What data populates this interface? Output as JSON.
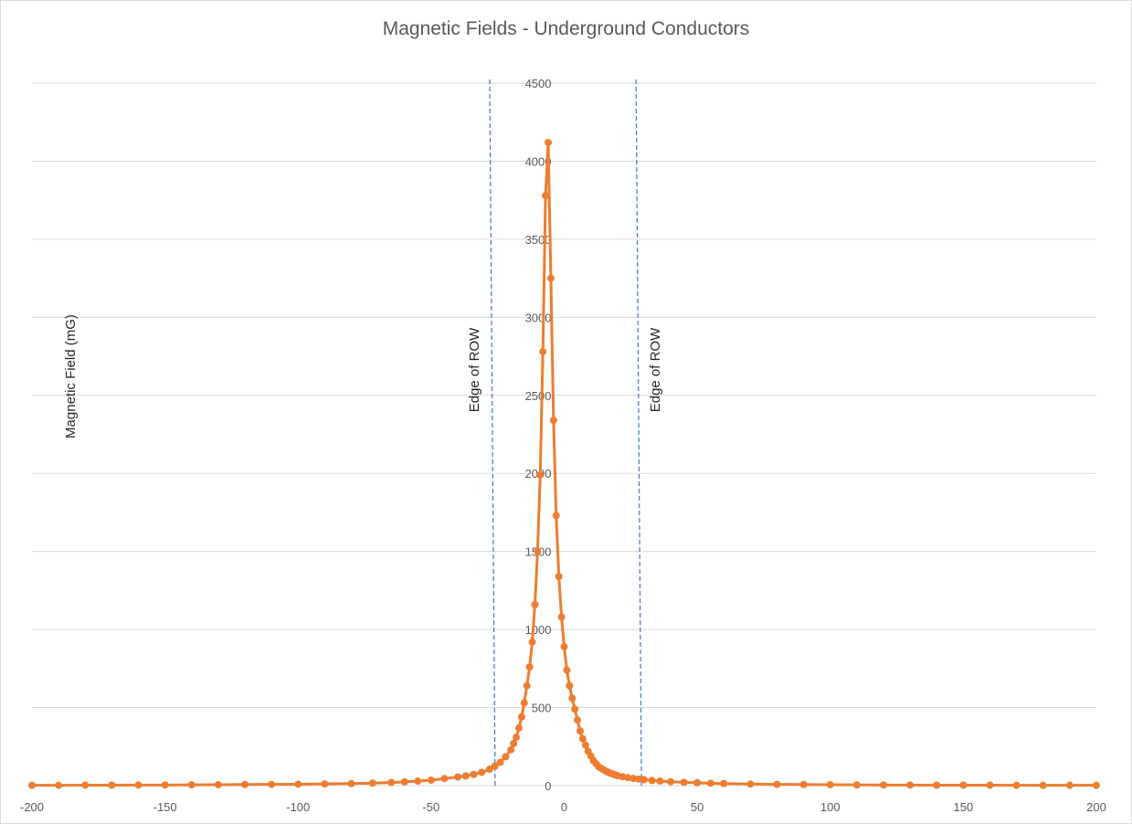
{
  "chart_data": {
    "type": "scatter",
    "title": "Magnetic Fields - Underground Conductors",
    "ylabel": "Magnetic Field (mG)",
    "xlabel": "",
    "xlim": [
      -200,
      200
    ],
    "ylim": [
      0,
      4500
    ],
    "x_ticks": [
      -200,
      -150,
      -100,
      -50,
      0,
      50,
      100,
      150,
      200
    ],
    "y_ticks": [
      0,
      500,
      1000,
      1500,
      2000,
      2500,
      3000,
      3500,
      4000,
      4500
    ],
    "grid": "horizontal",
    "legend": "none",
    "colors": {
      "series": "#ed7d31",
      "reference_lines": "#4472c4",
      "grid": "#d9d9d9",
      "text": "#595959"
    },
    "reference_lines": [
      {
        "x": -28,
        "label": "Edge of ROW"
      },
      {
        "x": 27,
        "label": "Edge of ROW"
      }
    ],
    "series": [
      {
        "x": [
          -200,
          -190,
          -180,
          -170,
          -160,
          -150,
          -140,
          -130,
          -120,
          -110,
          -100,
          -90,
          -80,
          -72,
          -65,
          -60,
          -55,
          -50,
          -45,
          -40,
          -37,
          -34,
          -31,
          -28,
          -26,
          -24,
          -22,
          -20,
          -19,
          -18,
          -17,
          -16,
          -15,
          -14,
          -13,
          -12,
          -11,
          -10,
          -9,
          -8,
          -7,
          -6,
          -5,
          -4,
          -3,
          -2,
          -1,
          0,
          1,
          2,
          3,
          4,
          5,
          6,
          7,
          8,
          9,
          10,
          11,
          12,
          13,
          14,
          15,
          16,
          17,
          18,
          19,
          20,
          22,
          24,
          26,
          28,
          30,
          33,
          36,
          40,
          45,
          50,
          55,
          60,
          70,
          80,
          90,
          100,
          110,
          120,
          130,
          140,
          150,
          160,
          170,
          180,
          190,
          200
        ],
        "y": [
          2,
          2,
          3,
          3,
          4,
          4,
          5,
          6,
          7,
          8,
          9,
          11,
          13,
          16,
          20,
          24,
          29,
          35,
          45,
          55,
          62,
          72,
          85,
          105,
          125,
          150,
          185,
          230,
          270,
          310,
          370,
          440,
          530,
          640,
          760,
          920,
          1160,
          1500,
          1990,
          2780,
          3780,
          4120,
          3250,
          2340,
          1730,
          1340,
          1080,
          890,
          740,
          640,
          560,
          490,
          420,
          350,
          300,
          260,
          220,
          190,
          160,
          140,
          120,
          110,
          100,
          90,
          82,
          76,
          70,
          64,
          57,
          51,
          46,
          42,
          38,
          33,
          29,
          25,
          21,
          18,
          15,
          13,
          10,
          8,
          7,
          6,
          5,
          4,
          4,
          3,
          3,
          3,
          2,
          2,
          2,
          2
        ]
      }
    ]
  }
}
